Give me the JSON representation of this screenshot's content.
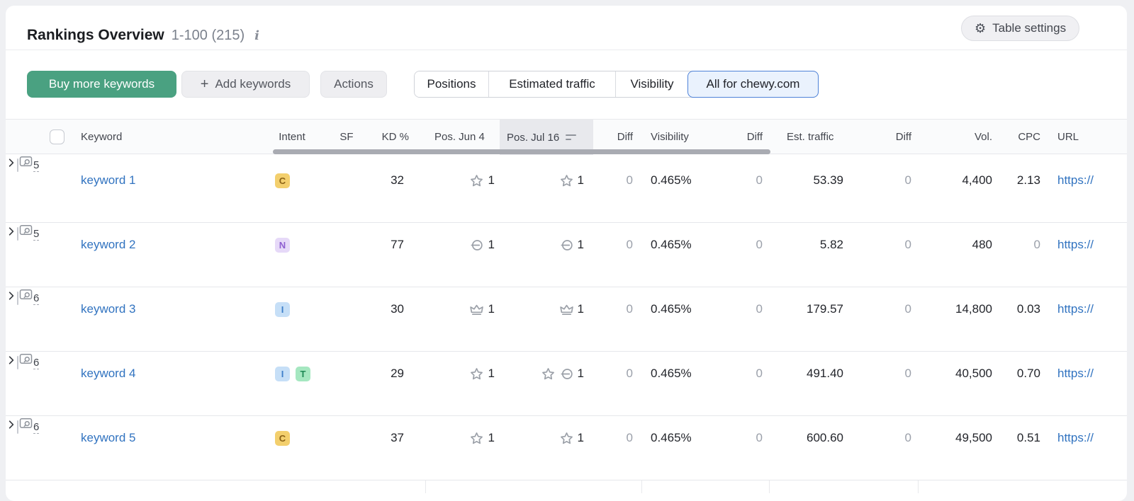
{
  "header": {
    "title": "Rankings Overview",
    "range": "1-100 (215)",
    "info_icon": "i",
    "table_settings_label": "Table settings",
    "gear_icon": "⚙"
  },
  "toolbar": {
    "buy_label": "Buy more keywords",
    "add_label": "Add keywords",
    "plus_icon": "+",
    "actions_label": "Actions",
    "tabs": [
      {
        "label": "Positions",
        "selected": false
      },
      {
        "label": "Estimated traffic",
        "selected": false
      },
      {
        "label": "Visibility",
        "selected": false
      },
      {
        "label": "All for chewy.com",
        "selected": true
      }
    ]
  },
  "table": {
    "headers": {
      "keyword": "Keyword",
      "intent": "Intent",
      "sf": "SF",
      "kd": "KD %",
      "pos_jun": "Pos. Jun 4",
      "pos_jul": "Pos. Jul 16",
      "diff_pos": "Diff",
      "visibility": "Visibility",
      "diff_visibility": "Diff",
      "est_traffic": "Est. traffic",
      "diff_traffic": "Diff",
      "volume": "Vol.",
      "cpc": "CPC",
      "url": "URL"
    },
    "sorted_column": "Pos. Jul 16",
    "rows": [
      {
        "keyword": "keyword 1",
        "intents": [
          "C"
        ],
        "sf": "5",
        "kd": "32",
        "kd_level": "amber",
        "pos_jun": {
          "icons": [
            "star"
          ],
          "value": "1"
        },
        "pos_jul": {
          "icons": [
            "star"
          ],
          "value": "1"
        },
        "pos_diff": "0",
        "visibility": "0.465%",
        "visibility_diff": "0",
        "est_traffic": "53.39",
        "traffic_diff": "0",
        "volume": "4,400",
        "cpc": "2.13",
        "cpc_muted": false,
        "url": "https://"
      },
      {
        "keyword": "keyword 2",
        "intents": [
          "N"
        ],
        "sf": "5",
        "kd": "77",
        "kd_level": "red",
        "pos_jun": {
          "icons": [
            "link"
          ],
          "value": "1"
        },
        "pos_jul": {
          "icons": [
            "link"
          ],
          "value": "1"
        },
        "pos_diff": "0",
        "visibility": "0.465%",
        "visibility_diff": "0",
        "est_traffic": "5.82",
        "traffic_diff": "0",
        "volume": "480",
        "cpc": "0",
        "cpc_muted": true,
        "url": "https://"
      },
      {
        "keyword": "keyword 3",
        "intents": [
          "I"
        ],
        "sf": "6",
        "kd": "30",
        "kd_level": "amber",
        "pos_jun": {
          "icons": [
            "crown"
          ],
          "value": "1"
        },
        "pos_jul": {
          "icons": [
            "crown"
          ],
          "value": "1"
        },
        "pos_diff": "0",
        "visibility": "0.465%",
        "visibility_diff": "0",
        "est_traffic": "179.57",
        "traffic_diff": "0",
        "volume": "14,800",
        "cpc": "0.03",
        "cpc_muted": false,
        "url": "https://"
      },
      {
        "keyword": "keyword 4",
        "intents": [
          "I",
          "T"
        ],
        "sf": "6",
        "kd": "29",
        "kd_level": "green",
        "pos_jun": {
          "icons": [
            "star"
          ],
          "value": "1"
        },
        "pos_jul": {
          "icons": [
            "star",
            "link"
          ],
          "value": "1"
        },
        "pos_diff": "0",
        "visibility": "0.465%",
        "visibility_diff": "0",
        "est_traffic": "491.40",
        "traffic_diff": "0",
        "volume": "40,500",
        "cpc": "0.70",
        "cpc_muted": false,
        "url": "https://"
      },
      {
        "keyword": "keyword 5",
        "intents": [
          "C"
        ],
        "sf": "6",
        "kd": "37",
        "kd_level": "amber",
        "pos_jun": {
          "icons": [
            "star"
          ],
          "value": "1"
        },
        "pos_jul": {
          "icons": [
            "star"
          ],
          "value": "1"
        },
        "pos_diff": "0",
        "visibility": "0.465%",
        "visibility_diff": "0",
        "est_traffic": "600.60",
        "traffic_diff": "0",
        "volume": "49,500",
        "cpc": "0.51",
        "cpc_muted": false,
        "url": "https://"
      }
    ]
  },
  "colors": {
    "accent_green": "#4aa181",
    "link_blue": "#3173c0",
    "selected_tab_border": "#4e82d8",
    "selected_tab_bg": "#eaf2fd",
    "sorted_header_bg": "#e8e9ed",
    "kd": {
      "amber": "#efa43c",
      "red": "#ec4f3e",
      "green": "#67c595"
    },
    "intent": {
      "C": {
        "bg": "#f3cf6d",
        "fg": "#8a6116"
      },
      "N": {
        "bg": "#e6d9f8",
        "fg": "#8f5fd1"
      },
      "I": {
        "bg": "#c6dff7",
        "fg": "#3e7fca"
      },
      "T": {
        "bg": "#a5e7c0",
        "fg": "#1f8a55"
      }
    }
  }
}
